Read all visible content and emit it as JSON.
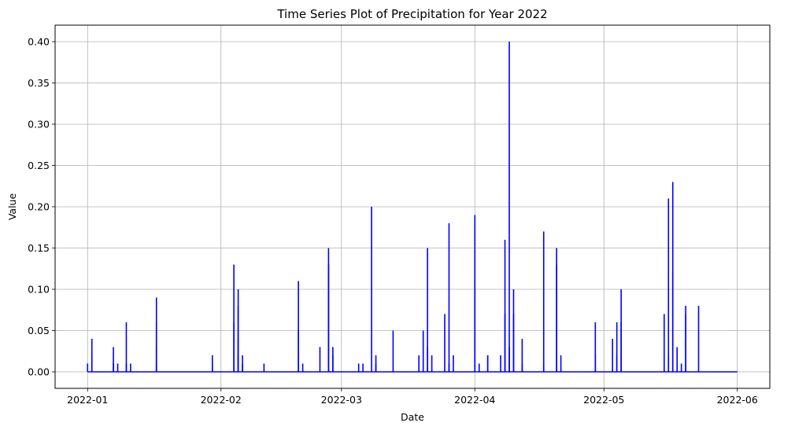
{
  "chart_data": {
    "type": "line",
    "title": "Time Series Plot of Precipitation for Year 2022",
    "xlabel": "Date",
    "ylabel": "Value",
    "xlim": [
      "2022-01-01",
      "2022-06-01"
    ],
    "ylim": [
      -0.02,
      0.42
    ],
    "grid": true,
    "line_color": "#0000ff",
    "x_ticks": [
      "2022-01-01",
      "2022-02-01",
      "2022-03-01",
      "2022-04-01",
      "2022-05-01",
      "2022-06-01"
    ],
    "x_tick_labels": [
      "2022-01",
      "2022-02",
      "2022-03",
      "2022-04",
      "2022-05",
      "2022-06"
    ],
    "y_ticks": [
      0.0,
      0.05,
      0.1,
      0.15,
      0.2,
      0.25,
      0.3,
      0.35,
      0.4
    ],
    "y_tick_labels": [
      "0.00",
      "0.05",
      "0.10",
      "0.15",
      "0.20",
      "0.25",
      "0.30",
      "0.35",
      "0.40"
    ],
    "baseline_value": 0.0,
    "series": [
      {
        "x": [
          "2022-01-01",
          "2022-01-02",
          "2022-01-02",
          "2022-01-07",
          "2022-01-07",
          "2022-01-08",
          "2022-01-10",
          "2022-01-10",
          "2022-01-11",
          "2022-01-17",
          "2022-01-17",
          "2022-01-17",
          "2022-01-17",
          "2022-01-30",
          "2022-01-30",
          "2022-02-04",
          "2022-02-04",
          "2022-02-05",
          "2022-02-05",
          "2022-02-05",
          "2022-02-05",
          "2022-02-06",
          "2022-02-06",
          "2022-02-11",
          "2022-02-19",
          "2022-02-19",
          "2022-02-20",
          "2022-02-24",
          "2022-02-26",
          "2022-02-26",
          "2022-02-27",
          "2022-02-27",
          "2022-03-05",
          "2022-03-06",
          "2022-03-08",
          "2022-03-09",
          "2022-03-09",
          "2022-03-13",
          "2022-03-19",
          "2022-03-20",
          "2022-03-21",
          "2022-03-21",
          "2022-03-22",
          "2022-03-25",
          "2022-03-26",
          "2022-03-26",
          "2022-03-27",
          "2022-04-01",
          "2022-04-01",
          "2022-04-02",
          "2022-04-04",
          "2022-04-04",
          "2022-04-07",
          "2022-04-08",
          "2022-04-08",
          "2022-04-09",
          "2022-04-09",
          "2022-04-10",
          "2022-04-10",
          "2022-04-12",
          "2022-04-12",
          "2022-04-17",
          "2022-04-17",
          "2022-04-20",
          "2022-04-20",
          "2022-04-21",
          "2022-04-29",
          "2022-04-29",
          "2022-05-03",
          "2022-05-04",
          "2022-05-04",
          "2022-05-05",
          "2022-05-05",
          "2022-05-15",
          "2022-05-16",
          "2022-05-16",
          "2022-05-17",
          "2022-05-17",
          "2022-05-18",
          "2022-05-19",
          "2022-05-20",
          "2022-05-20",
          "2022-05-23"
        ],
        "y": [
          0.01,
          0.04,
          0.02,
          0.01,
          0.03,
          0.01,
          0.06,
          0.01,
          0.01,
          0.06,
          0.09,
          0.03,
          0.01,
          0.02,
          0.01,
          0.06,
          0.13,
          0.08,
          0.02,
          0.1,
          0.04,
          0.02,
          0.01,
          0.01,
          0.05,
          0.11,
          0.01,
          0.03,
          0.13,
          0.15,
          0.03,
          0.02,
          0.01,
          0.01,
          0.2,
          0.02,
          0.01,
          0.05,
          0.02,
          0.05,
          0.15,
          0.03,
          0.02,
          0.07,
          0.18,
          0.01,
          0.02,
          0.19,
          0.11,
          0.01,
          0.02,
          0.02,
          0.02,
          0.16,
          0.07,
          0.4,
          0.03,
          0.07,
          0.1,
          0.01,
          0.04,
          0.17,
          0.01,
          0.13,
          0.15,
          0.02,
          0.06,
          0.02,
          0.04,
          0.06,
          0.02,
          0.06,
          0.1,
          0.07,
          0.21,
          0.02,
          0.23,
          0.12,
          0.03,
          0.01,
          0.07,
          0.08,
          0.08
        ]
      }
    ]
  }
}
